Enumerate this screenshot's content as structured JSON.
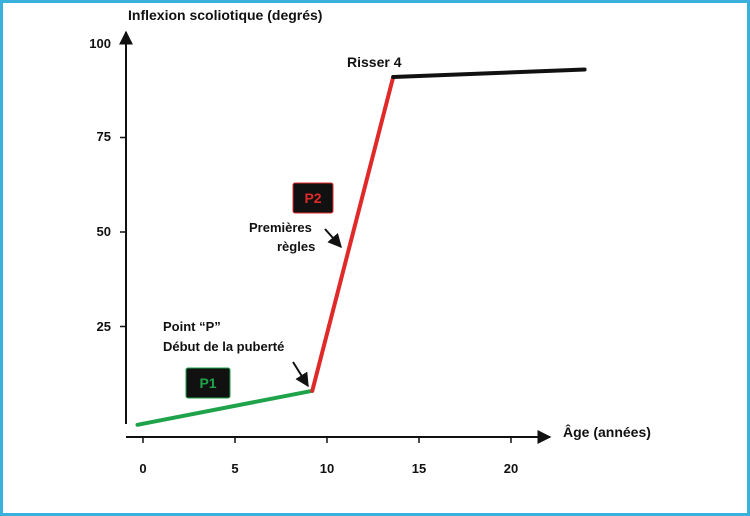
{
  "chart_data": {
    "type": "line",
    "ylabel": "Inflexion scoliotique (degrés)",
    "xlabel": "Âge (années)",
    "xlim": [
      -0.5,
      22
    ],
    "ylim": [
      -3,
      103
    ],
    "x_ticks": [
      0,
      5,
      10,
      15,
      20
    ],
    "x_tick_labels": [
      "0",
      "5",
      "10",
      "15",
      "20"
    ],
    "y_ticks": [
      25,
      50,
      75,
      100
    ],
    "y_tick_labels": [
      "25",
      "50",
      "75",
      "100"
    ],
    "grid": false,
    "series": [
      {
        "color": "#1fa34a",
        "x": [
          -0.3,
          9.2
        ],
        "y": [
          -1,
          8
        ]
      },
      {
        "color": "#e02a2a",
        "x": [
          9.2,
          13.6
        ],
        "y": [
          8,
          91
        ]
      },
      {
        "color": "#111111",
        "x": [
          13.6,
          24
        ],
        "y": [
          91,
          93
        ]
      }
    ],
    "annotations": {
      "risser": {
        "text": "Risser 4",
        "x": 13.6,
        "y": 91
      },
      "p2": {
        "text": "P2",
        "bg": "#111111",
        "color": "#e02a2a"
      },
      "p1": {
        "text": "P1",
        "bg": "#111111",
        "color": "#1fa34a"
      },
      "menarche": {
        "line1": "Premières",
        "line2": "règles"
      },
      "point_p": {
        "line1": "Point “P”",
        "line2": "Début de la puberté"
      }
    }
  }
}
